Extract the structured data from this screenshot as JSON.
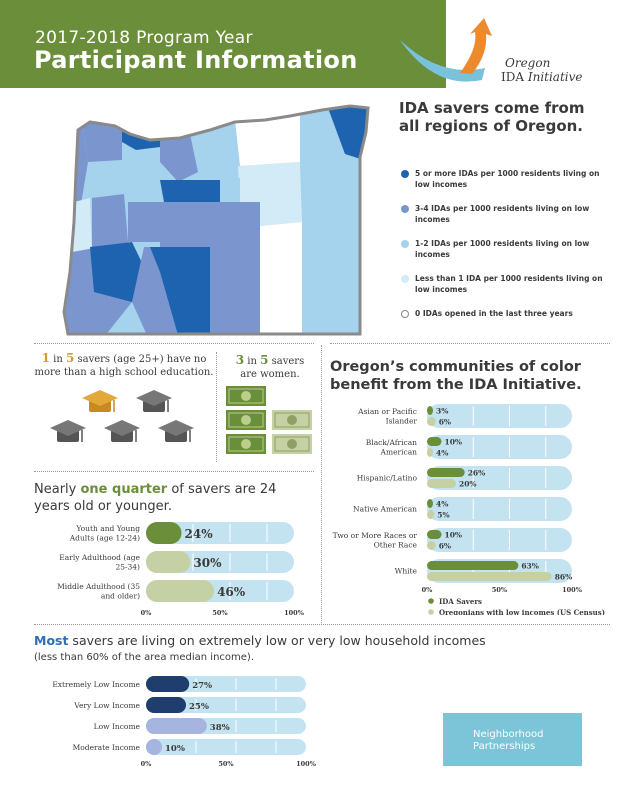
{
  "header": {
    "year": "2017-2018 Program Year",
    "title": "Participant Information",
    "band_color": "#6a8e3a",
    "logo_line1": "Oregon",
    "logo_line2_a": "IDA ",
    "logo_line2_b": "Initiative"
  },
  "map_section": {
    "title": "IDA savers come from all regions of Oregon.",
    "legend": [
      {
        "label": "5 or more IDAs per 1000 residents living on low incomes",
        "color": "#1e63b0"
      },
      {
        "label": "3-4 IDAs per 1000 residents living on low incomes",
        "color": "#7b96cf"
      },
      {
        "label": "1-2 IDAs per 1000 residents living on low incomes",
        "color": "#a5d2ec"
      },
      {
        "label": "Less than 1 IDA per 1000 residents living on low incomes",
        "color": "#d2ebf7"
      },
      {
        "label": "0 IDAs opened in the last three years",
        "color": "#ffffff"
      }
    ]
  },
  "education": {
    "num1": "1",
    "in": " in ",
    "num2": "5",
    "rest": " savers (age 25+) have no more than a high school education.",
    "icons": [
      "graduation-cap-gold",
      "graduation-cap",
      "graduation-cap",
      "graduation-cap",
      "graduation-cap"
    ]
  },
  "women": {
    "num1": "3",
    "in": " in ",
    "num2": "5",
    "rest1": " savers",
    "rest2": "are women."
  },
  "communities": {
    "title": "Oregon’s communities of color benefit from the IDA Initiative.",
    "legend": [
      {
        "label": "IDA Savers",
        "color": "#6a8e3a"
      },
      {
        "label": "Oregonians with low incomes (US Census)",
        "color": "#c5d0a5"
      }
    ]
  },
  "age": {
    "title_hl": "one quarter",
    "title_pre": "Nearly ",
    "title_post": " of savers are 24 years old or younger."
  },
  "income": {
    "title_hl": "Most",
    "title_rest": " savers are living on extremely low or very low household incomes",
    "subtitle": "(less than 60% of the area median income)."
  },
  "partner": {
    "line1": "Neighborhood",
    "line2": "Partnerships"
  },
  "chart_data": [
    {
      "type": "bar",
      "title": "Oregon’s communities of color benefit from the IDA Initiative.",
      "categories": [
        "Asian or Pacific Islander",
        "Black/African American",
        "Hispanic/Latino",
        "Native American",
        "Two or More Races or Other Race",
        "White"
      ],
      "series": [
        {
          "name": "IDA Savers",
          "values": [
            3,
            10,
            26,
            4,
            10,
            63
          ],
          "color": "#6a8e3a"
        },
        {
          "name": "Oregonians with low incomes (US Census)",
          "values": [
            6,
            4,
            20,
            5,
            6,
            86
          ],
          "color": "#c5d0a5"
        }
      ],
      "ticks": [
        "0%",
        "50%",
        "100%"
      ],
      "xlim": [
        0,
        100
      ],
      "track_color": "#c4e3f1"
    },
    {
      "type": "bar",
      "title": "Nearly one quarter of savers are 24 years old or younger.",
      "categories": [
        "Youth and Young Adults (age 12-24)",
        "Early Adulthood (age 25-34)",
        "Middle Adulthood (35 and older)"
      ],
      "values": [
        24,
        30,
        46
      ],
      "colors": [
        "#6a8e3a",
        "#c5d0a5",
        "#c5d0a5"
      ],
      "ticks": [
        "0%",
        "50%",
        "100%"
      ],
      "xlim": [
        0,
        100
      ]
    },
    {
      "type": "bar",
      "title": "Most savers are living on extremely low or very low household incomes",
      "categories": [
        "Extremely Low Income",
        "Very Low Income",
        "Low Income",
        "Moderate Income"
      ],
      "values": [
        27,
        25,
        38,
        10
      ],
      "colors": [
        "#1f3e6e",
        "#1f3e6e",
        "#a5b5df",
        "#a5b5df"
      ],
      "ticks": [
        "0%",
        "50%",
        "100%"
      ],
      "xlim": [
        0,
        100
      ]
    }
  ]
}
